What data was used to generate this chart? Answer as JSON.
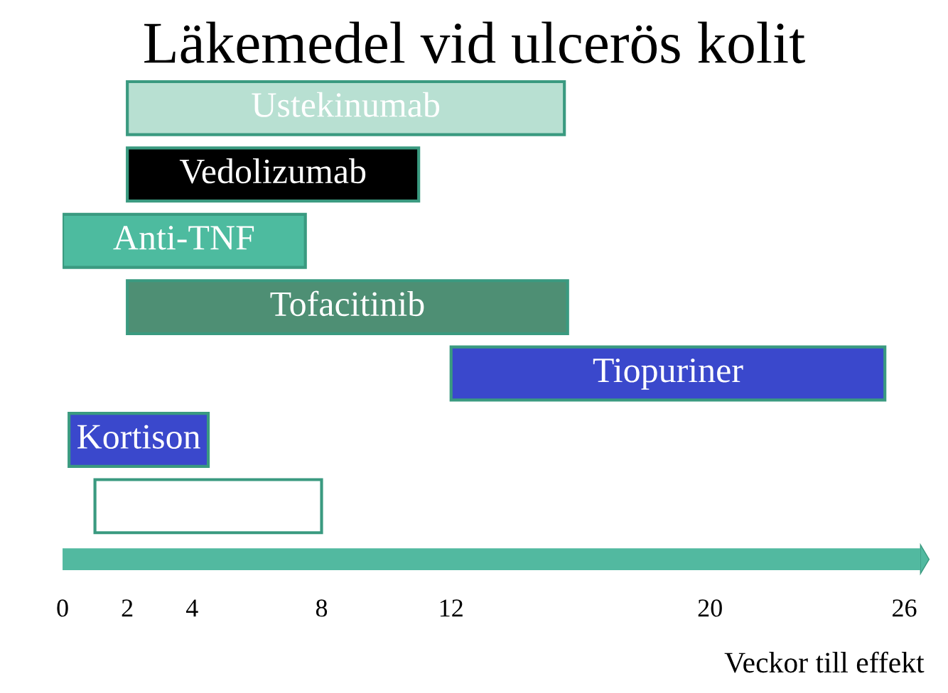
{
  "chart_data": {
    "type": "bar",
    "orientation": "horizontal",
    "title": "Läkemedel vid ulcerös kolit",
    "xlabel": "Veckor till effekt",
    "categories": [
      "Ustekinumab",
      "Vedolizumab",
      "Anti-TNF",
      "Tofacitinib",
      "Tiopuriner",
      "Kortison",
      null
    ],
    "base": [
      2,
      2,
      0,
      2,
      12,
      0.2,
      1
    ],
    "values": [
      13.5,
      9,
      7.5,
      13.6,
      13.4,
      4.3,
      7
    ],
    "colors": [
      "#b8e0d2",
      "#000000",
      "#4dbb9f",
      "#4e8f74",
      "#3a48cc",
      "#3a48cc",
      "#ffffff"
    ],
    "xlim": [
      0,
      26.5
    ],
    "xticks": [
      0,
      2,
      4,
      8,
      12,
      20,
      26
    ],
    "grid": false,
    "legend": false
  }
}
